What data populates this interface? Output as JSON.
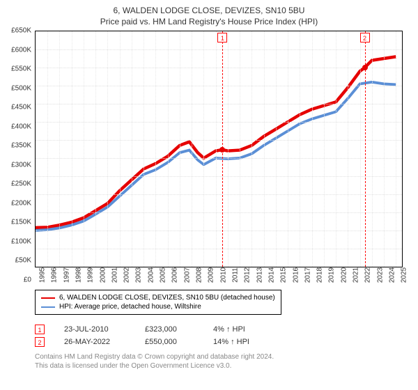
{
  "title": "6, WALDEN LODGE CLOSE, DEVIZES, SN10 5BU",
  "subtitle": "Price paid vs. HM Land Registry's House Price Index (HPI)",
  "chart": {
    "type": "line",
    "xlim": [
      1995,
      2025.5
    ],
    "ylim": [
      0,
      650000
    ],
    "ytick_step": 50000,
    "yticks": [
      {
        "v": 0,
        "label": "£0"
      },
      {
        "v": 50000,
        "label": "£50K"
      },
      {
        "v": 100000,
        "label": "£100K"
      },
      {
        "v": 150000,
        "label": "£150K"
      },
      {
        "v": 200000,
        "label": "£200K"
      },
      {
        "v": 250000,
        "label": "£250K"
      },
      {
        "v": 300000,
        "label": "£300K"
      },
      {
        "v": 350000,
        "label": "£350K"
      },
      {
        "v": 400000,
        "label": "£400K"
      },
      {
        "v": 450000,
        "label": "£450K"
      },
      {
        "v": 500000,
        "label": "£500K"
      },
      {
        "v": 550000,
        "label": "£550K"
      },
      {
        "v": 600000,
        "label": "£600K"
      },
      {
        "v": 650000,
        "label": "£650K"
      }
    ],
    "xticks": [
      1995,
      1996,
      1997,
      1998,
      1999,
      2000,
      2001,
      2002,
      2003,
      2004,
      2005,
      2006,
      2007,
      2008,
      2009,
      2010,
      2011,
      2012,
      2013,
      2014,
      2015,
      2016,
      2017,
      2018,
      2019,
      2020,
      2021,
      2022,
      2023,
      2024,
      2025
    ],
    "grid_color": "#e0e0e0",
    "background_color": "#ffffff",
    "border_color": "#000000",
    "series": [
      {
        "id": "property",
        "label": "6, WALDEN LODGE CLOSE, DEVIZES, SN10 5BU (detached house)",
        "color": "#e60000",
        "line_width": 1.5,
        "points": [
          [
            1995,
            108000
          ],
          [
            1996,
            109000
          ],
          [
            1997,
            115000
          ],
          [
            1998,
            123000
          ],
          [
            1999,
            135000
          ],
          [
            2000,
            155000
          ],
          [
            2001,
            175000
          ],
          [
            2002,
            210000
          ],
          [
            2003,
            240000
          ],
          [
            2004,
            270000
          ],
          [
            2005,
            285000
          ],
          [
            2006,
            305000
          ],
          [
            2007,
            335000
          ],
          [
            2007.8,
            345000
          ],
          [
            2008.5,
            315000
          ],
          [
            2009,
            300000
          ],
          [
            2010,
            320000
          ],
          [
            2010.56,
            323000
          ],
          [
            2011,
            320000
          ],
          [
            2012,
            322000
          ],
          [
            2013,
            335000
          ],
          [
            2014,
            360000
          ],
          [
            2015,
            380000
          ],
          [
            2016,
            400000
          ],
          [
            2017,
            420000
          ],
          [
            2018,
            435000
          ],
          [
            2019,
            445000
          ],
          [
            2020,
            455000
          ],
          [
            2021,
            495000
          ],
          [
            2022,
            540000
          ],
          [
            2022.4,
            550000
          ],
          [
            2023,
            570000
          ],
          [
            2024,
            575000
          ],
          [
            2025,
            580000
          ]
        ]
      },
      {
        "id": "hpi",
        "label": "HPI: Average price, detached house, Wiltshire",
        "color": "#5b8fd6",
        "line_width": 1.3,
        "points": [
          [
            1995,
            100000
          ],
          [
            1996,
            102000
          ],
          [
            1997,
            107000
          ],
          [
            1998,
            115000
          ],
          [
            1999,
            126000
          ],
          [
            2000,
            145000
          ],
          [
            2001,
            165000
          ],
          [
            2002,
            195000
          ],
          [
            2003,
            225000
          ],
          [
            2004,
            255000
          ],
          [
            2005,
            268000
          ],
          [
            2006,
            288000
          ],
          [
            2007,
            315000
          ],
          [
            2007.8,
            322000
          ],
          [
            2008.5,
            295000
          ],
          [
            2009,
            282000
          ],
          [
            2010,
            300000
          ],
          [
            2011,
            298000
          ],
          [
            2012,
            300000
          ],
          [
            2013,
            312000
          ],
          [
            2014,
            335000
          ],
          [
            2015,
            355000
          ],
          [
            2016,
            375000
          ],
          [
            2017,
            395000
          ],
          [
            2018,
            408000
          ],
          [
            2019,
            418000
          ],
          [
            2020,
            428000
          ],
          [
            2021,
            465000
          ],
          [
            2022,
            505000
          ],
          [
            2023,
            510000
          ],
          [
            2024,
            505000
          ],
          [
            2025,
            503000
          ]
        ]
      }
    ],
    "markers": [
      {
        "n": 1,
        "x": 2010.56,
        "y": 323000,
        "color": "#e60000"
      },
      {
        "n": 2,
        "x": 2022.4,
        "y": 550000,
        "color": "#e60000"
      }
    ],
    "marker_line_color": "#ff0000"
  },
  "legend": {
    "border_color": "#000000"
  },
  "transactions": [
    {
      "n": 1,
      "date": "23-JUL-2010",
      "price": "£323,000",
      "hpi": "4%",
      "arrow": "↑",
      "hpi_label": "HPI"
    },
    {
      "n": 2,
      "date": "26-MAY-2022",
      "price": "£550,000",
      "hpi": "14%",
      "arrow": "↑",
      "hpi_label": "HPI"
    }
  ],
  "footer_line1": "Contains HM Land Registry data © Crown copyright and database right 2024.",
  "footer_line2": "This data is licensed under the Open Government Licence v3.0.",
  "colors": {
    "text": "#333333",
    "muted_text": "#888888",
    "marker_border": "#ff0000"
  }
}
